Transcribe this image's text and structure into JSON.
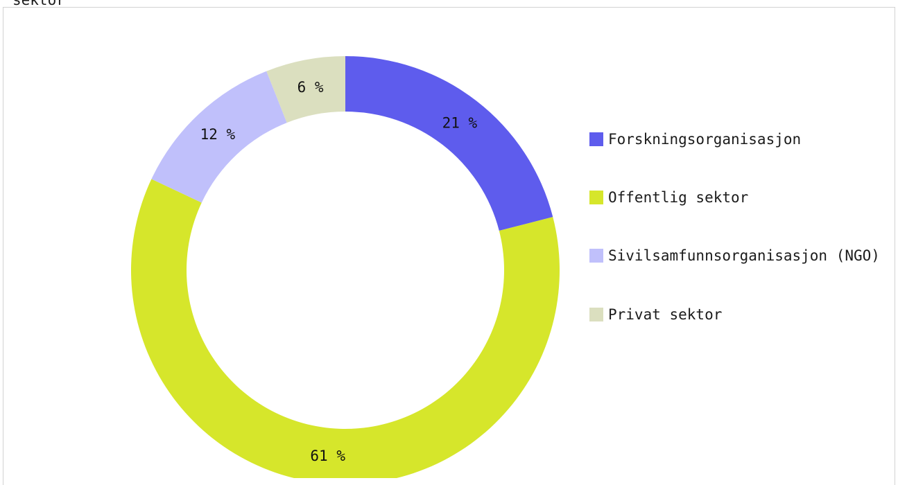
{
  "page": {
    "cut_title": "sektor"
  },
  "chart_data": {
    "type": "pie",
    "donut": true,
    "categories": [
      "Forskningsorganisasjon",
      "Offentlig sektor",
      "Sivilsamfunnsorganisasjon (NGO)",
      "Privat sektor"
    ],
    "values": [
      21,
      61,
      12,
      6
    ],
    "value_labels": [
      "21 %",
      "61 %",
      "12 %",
      "6 %"
    ],
    "colors": [
      "#5e5ced",
      "#d6e62b",
      "#c0c0fb",
      "#dbdfbf"
    ],
    "legend_position": "right",
    "title": "",
    "xlabel": "",
    "ylabel": ""
  }
}
